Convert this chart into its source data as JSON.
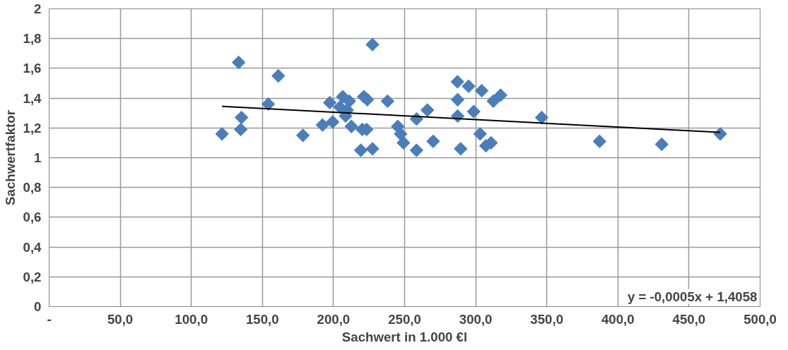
{
  "chart_data": {
    "type": "scatter",
    "xlabel": "Sachwert in 1.000 €l",
    "ylabel": "Sachwertfaktor",
    "xlim": [
      0,
      500
    ],
    "ylim": [
      0,
      2
    ],
    "xticks": [
      {
        "value": 0,
        "label": "-"
      },
      {
        "value": 50,
        "label": "50,0"
      },
      {
        "value": 100,
        "label": "100,0"
      },
      {
        "value": 150,
        "label": "150,0"
      },
      {
        "value": 200,
        "label": "200,0"
      },
      {
        "value": 250,
        "label": "250,0"
      },
      {
        "value": 300,
        "label": "300,0"
      },
      {
        "value": 350,
        "label": "350,0"
      },
      {
        "value": 400,
        "label": "400,0"
      },
      {
        "value": 450,
        "label": "450,0"
      },
      {
        "value": 500,
        "label": "500,0"
      }
    ],
    "yticks": [
      0,
      {
        "value": 0.2,
        "label": "0,2"
      },
      {
        "value": 0.4,
        "label": "0,4"
      },
      {
        "value": 0.6,
        "label": "0,6"
      },
      {
        "value": 0.8,
        "label": "0,8"
      },
      1,
      {
        "value": 1.2,
        "label": "1,2"
      },
      {
        "value": 1.4,
        "label": "1,4"
      },
      {
        "value": 1.6,
        "label": "1,6"
      },
      {
        "value": 1.8,
        "label": "1,8"
      },
      2
    ],
    "grid": true,
    "annotations": [
      "y = -0,0005x + 1,4058"
    ],
    "series": [
      {
        "marker": "diamond",
        "color": "#4a7ebb",
        "x": [
          121.6,
          133.3,
          134.8,
          135.3,
          154.1,
          161.2,
          178.5,
          192.3,
          197.4,
          199.4,
          206.5,
          211.1,
          204.5,
          209.6,
          208.5,
          212.6,
          219.2,
          227.4,
          221.3,
          223.8,
          220.3,
          223.3,
          227.4,
          238.0,
          245.2,
          247.2,
          249.2,
          258.4,
          258.4,
          266.0,
          270.1,
          287.2,
          295.0,
          304.2,
          287.3,
          298.6,
          287.3,
          303.1,
          307.2,
          310.8,
          289.4,
          312.4,
          317.5,
          346.4,
          387.1,
          430.8,
          472.0
        ],
        "values": [
          1.16,
          1.64,
          1.19,
          1.27,
          1.36,
          1.55,
          1.15,
          1.22,
          1.37,
          1.24,
          1.41,
          1.38,
          1.34,
          1.32,
          1.28,
          1.21,
          1.05,
          1.06,
          1.41,
          1.39,
          1.19,
          1.19,
          1.76,
          1.38,
          1.21,
          1.16,
          1.1,
          1.05,
          1.26,
          1.32,
          1.11,
          1.51,
          1.48,
          1.45,
          1.39,
          1.31,
          1.28,
          1.16,
          1.08,
          1.1,
          1.06,
          1.38,
          1.42,
          1.27,
          1.11,
          1.09,
          1.16
        ]
      },
      {
        "type": "line",
        "marker": "none",
        "color": "#000000",
        "x": [
          121.6,
          472.0
        ],
        "values": [
          1.345,
          1.17
        ]
      }
    ]
  }
}
